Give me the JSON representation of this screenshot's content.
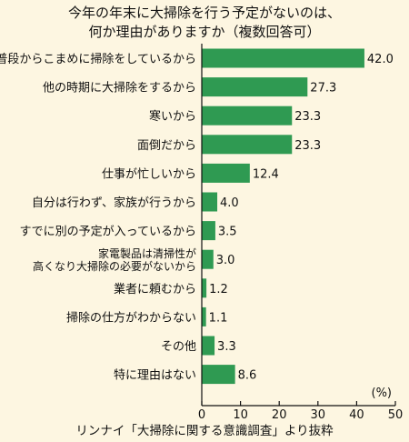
{
  "title_lines": [
    "今年の年末に大掃除を行う予定がないのは、",
    "何か理由がありますか（複数回答可）"
  ],
  "source": "リンナイ「大掃除に関する意識調査」より抜粋",
  "colors": {
    "bar": "#2f9a52",
    "background": "#fdf6e1",
    "text": "#111111"
  },
  "chart_data": {
    "type": "bar",
    "orientation": "horizontal",
    "categories": [
      [
        "普段からこまめに掃除をしているから"
      ],
      [
        "他の時期に大掃除をするから"
      ],
      [
        "寒いから"
      ],
      [
        "面倒だから"
      ],
      [
        "仕事が忙しいから"
      ],
      [
        "自分は行わず、家族が行うから"
      ],
      [
        "すでに別の予定が入っているから"
      ],
      [
        "家電製品は清掃性が",
        "高くなり大掃除の必要がないから"
      ],
      [
        "業者に頼むから"
      ],
      [
        "掃除の仕方がわからない"
      ],
      [
        "その他"
      ],
      [
        "特に理由はない"
      ]
    ],
    "values": [
      42.0,
      27.3,
      23.3,
      23.3,
      12.4,
      4.0,
      3.5,
      3.0,
      1.2,
      1.1,
      3.3,
      8.6
    ],
    "value_labels": [
      "42.0",
      "27.3",
      "23.3",
      "23.3",
      "12.4",
      "4.0",
      "3.5",
      "3.0",
      "1.2",
      "1.1",
      "3.3",
      "8.6"
    ],
    "xlim": [
      0,
      50
    ],
    "xticks": [
      0,
      10,
      20,
      30,
      40,
      50
    ],
    "xlabel": "(%)",
    "grid": false,
    "legend": "none"
  }
}
